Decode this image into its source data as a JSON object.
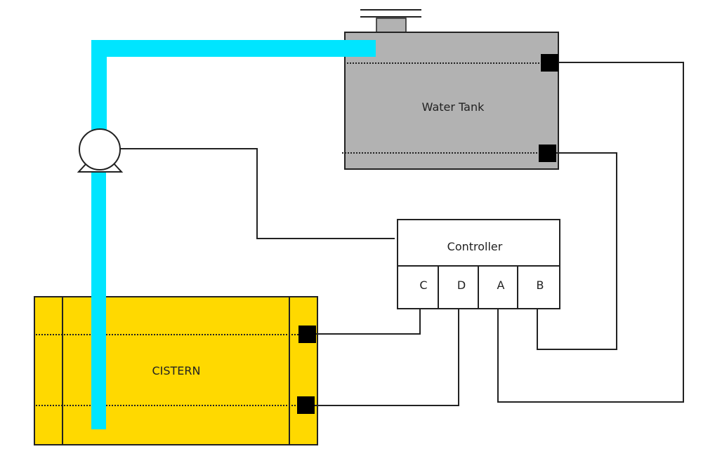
{
  "labels": {
    "water_tank": "Water Tank",
    "cistern": "CISTERN",
    "controller": "Controller",
    "ports": [
      "C",
      "D",
      "A",
      "B"
    ]
  },
  "colors": {
    "pipe": "#00e5ff",
    "tank_fill": "#b2b2b2",
    "cistern_fill": "#ffd900",
    "sensor": "#000000",
    "wire": "#222222",
    "outline": "#222222"
  },
  "icons": {
    "pump": "pump-icon",
    "sensor": "level-sensor-icon"
  }
}
